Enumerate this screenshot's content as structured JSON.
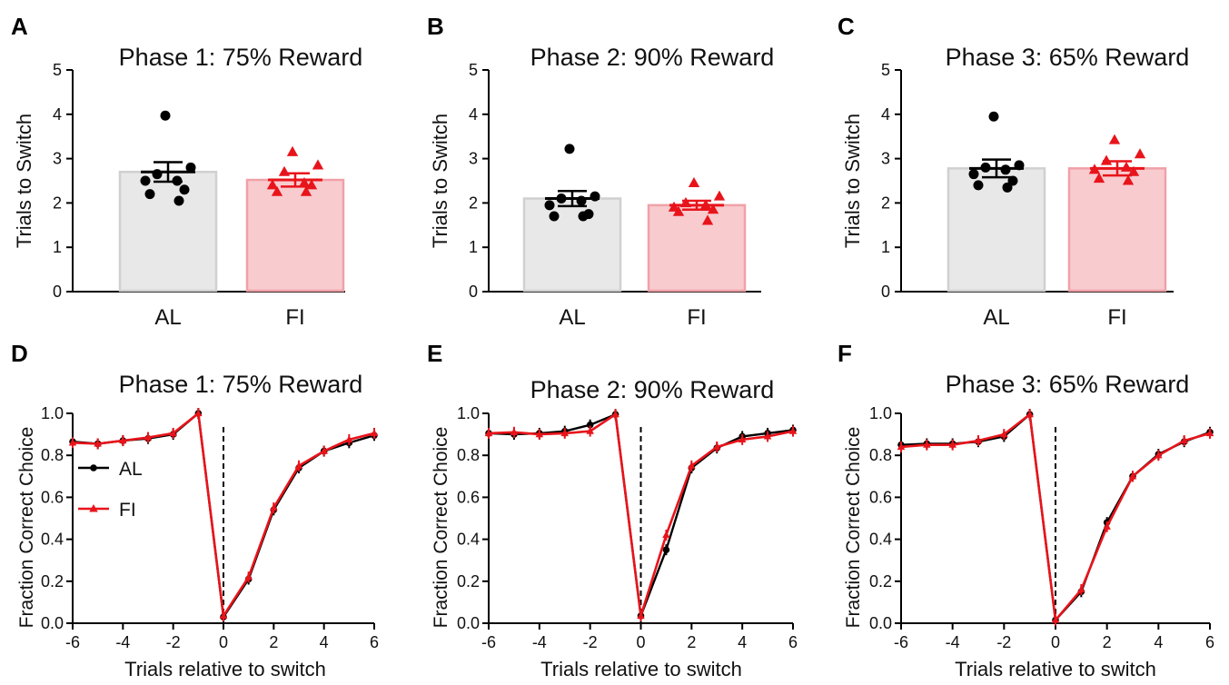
{
  "colors": {
    "al": "#000000",
    "fi": "#e8141b",
    "al_bar_fill": "#e8e8e8",
    "al_bar_edge": "#d0d0d0",
    "fi_bar_fill": "#f8cbcf",
    "fi_bar_edge": "#f0a1a8"
  },
  "chart_data": [
    {
      "panel": "A",
      "type": "bar",
      "title": "Phase 1: 75% Reward",
      "ylabel": "Trials to Switch",
      "ylim": [
        0,
        5
      ],
      "yticks": [
        0,
        1,
        2,
        3,
        4,
        5
      ],
      "categories": [
        "AL",
        "FI"
      ],
      "series": [
        {
          "name": "AL",
          "mean": 2.7,
          "sem": 0.22,
          "points": [
            3.97,
            2.8,
            2.65,
            2.5,
            2.5,
            2.3,
            2.2,
            2.05
          ]
        },
        {
          "name": "FI",
          "mean": 2.52,
          "sem": 0.15,
          "points": [
            3.15,
            2.85,
            2.7,
            2.45,
            2.4,
            2.4,
            2.25,
            2.25
          ]
        }
      ]
    },
    {
      "panel": "B",
      "type": "bar",
      "title": "Phase 2: 90% Reward",
      "ylabel": "Trials to Switch",
      "ylim": [
        0,
        5
      ],
      "yticks": [
        0,
        1,
        2,
        3,
        4,
        5
      ],
      "categories": [
        "AL",
        "FI"
      ],
      "series": [
        {
          "name": "AL",
          "mean": 2.1,
          "sem": 0.17,
          "points": [
            3.22,
            2.15,
            2.1,
            2.05,
            1.95,
            1.75,
            1.7,
            1.7
          ]
        },
        {
          "name": "FI",
          "mean": 1.95,
          "sem": 0.1,
          "points": [
            2.45,
            2.15,
            2.0,
            1.95,
            1.9,
            1.85,
            1.8,
            1.6
          ]
        }
      ]
    },
    {
      "panel": "C",
      "type": "bar",
      "title": "Phase 3: 65% Reward",
      "ylabel": "Trials to Switch",
      "ylim": [
        0,
        5
      ],
      "yticks": [
        0,
        1,
        2,
        3,
        4,
        5
      ],
      "categories": [
        "AL",
        "FI"
      ],
      "series": [
        {
          "name": "AL",
          "mean": 2.78,
          "sem": 0.2,
          "points": [
            3.95,
            2.85,
            2.8,
            2.75,
            2.65,
            2.5,
            2.4,
            2.35
          ]
        },
        {
          "name": "FI",
          "mean": 2.78,
          "sem": 0.16,
          "points": [
            3.42,
            3.1,
            2.95,
            2.8,
            2.75,
            2.7,
            2.55,
            2.5
          ]
        }
      ]
    },
    {
      "panel": "D",
      "type": "line",
      "title": "Phase 1: 75% Reward",
      "xlabel": "Trials relative to switch",
      "ylabel": "Fraction Correct Choice",
      "xlim": [
        -6,
        6
      ],
      "ylim": [
        0,
        1
      ],
      "xticks": [
        -6,
        -4,
        -2,
        0,
        2,
        4,
        6
      ],
      "yticks": [
        0,
        0.2,
        0.4,
        0.6,
        0.8,
        1
      ],
      "ytick_labels": [
        "0.0",
        "0.2",
        "0.4",
        "0.6",
        "0.8",
        "1.0"
      ],
      "legend": true,
      "legend_placement": "middle-left",
      "x": [
        -6,
        -5,
        -4,
        -3,
        -2,
        -1,
        0,
        1,
        2,
        3,
        4,
        5,
        6
      ],
      "series": [
        {
          "name": "AL",
          "values": [
            0.865,
            0.855,
            0.87,
            0.88,
            0.9,
            1.0,
            0.03,
            0.21,
            0.54,
            0.74,
            0.82,
            0.86,
            0.895
          ]
        },
        {
          "name": "FI",
          "values": [
            0.86,
            0.855,
            0.87,
            0.885,
            0.905,
            1.0,
            0.035,
            0.22,
            0.55,
            0.75,
            0.82,
            0.875,
            0.905
          ]
        }
      ]
    },
    {
      "panel": "E",
      "type": "line",
      "title": "Phase 2: 90% Reward",
      "xlabel": "Trials relative to switch",
      "ylabel": "Fraction Correct Choice",
      "xlim": [
        -6,
        6
      ],
      "ylim": [
        0,
        1
      ],
      "xticks": [
        -6,
        -4,
        -2,
        0,
        2,
        4,
        6
      ],
      "yticks": [
        0,
        0.2,
        0.4,
        0.6,
        0.8,
        1
      ],
      "ytick_labels": [
        "0.0",
        "0.2",
        "0.4",
        "0.6",
        "0.8",
        "1.0"
      ],
      "legend": false,
      "x": [
        -6,
        -5,
        -4,
        -3,
        -2,
        -1,
        0,
        1,
        2,
        3,
        4,
        5,
        6
      ],
      "series": [
        {
          "name": "AL",
          "values": [
            0.905,
            0.9,
            0.905,
            0.915,
            0.945,
            0.995,
            0.035,
            0.35,
            0.74,
            0.835,
            0.89,
            0.905,
            0.92
          ]
        },
        {
          "name": "FI",
          "values": [
            0.905,
            0.91,
            0.9,
            0.905,
            0.915,
            0.995,
            0.035,
            0.42,
            0.75,
            0.84,
            0.875,
            0.89,
            0.915
          ]
        }
      ]
    },
    {
      "panel": "F",
      "type": "line",
      "title": "Phase 3: 65% Reward",
      "xlabel": "Trials relative to switch",
      "ylabel": "Fraction Correct Choice",
      "xlim": [
        -6,
        6
      ],
      "ylim": [
        0,
        1
      ],
      "xticks": [
        -6,
        -4,
        -2,
        0,
        2,
        4,
        6
      ],
      "yticks": [
        0,
        0.2,
        0.4,
        0.6,
        0.8,
        1
      ],
      "ytick_labels": [
        "0.0",
        "0.2",
        "0.4",
        "0.6",
        "0.8",
        "1.0"
      ],
      "legend": false,
      "x": [
        -6,
        -5,
        -4,
        -3,
        -2,
        -1,
        0,
        1,
        2,
        3,
        4,
        5,
        6
      ],
      "series": [
        {
          "name": "AL",
          "values": [
            0.85,
            0.855,
            0.855,
            0.865,
            0.89,
            0.995,
            0.015,
            0.15,
            0.48,
            0.7,
            0.805,
            0.865,
            0.91
          ]
        },
        {
          "name": "FI",
          "values": [
            0.84,
            0.85,
            0.85,
            0.87,
            0.9,
            0.995,
            0.015,
            0.16,
            0.46,
            0.7,
            0.8,
            0.87,
            0.905
          ]
        }
      ]
    }
  ]
}
